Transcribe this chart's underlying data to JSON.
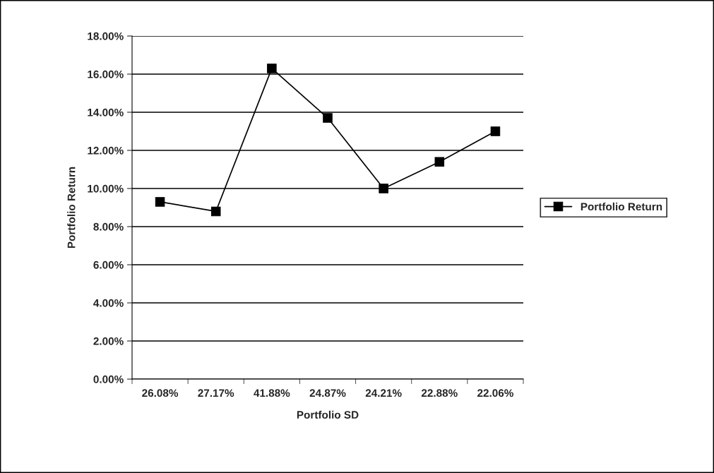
{
  "chart_data": {
    "type": "line",
    "xlabel": "Portfolio SD",
    "ylabel": "Portfolio Return",
    "categories": [
      "26.08%",
      "27.17%",
      "41.88%",
      "24.87%",
      "24.21%",
      "22.88%",
      "22.06%"
    ],
    "series": [
      {
        "name": "Portfolio Return",
        "color": "#000000",
        "values": [
          9.3,
          8.8,
          16.3,
          13.7,
          10.0,
          11.4,
          13.0
        ]
      }
    ],
    "ylim": [
      0,
      18
    ],
    "yticks": [
      {
        "value": 0,
        "label": "0.00%"
      },
      {
        "value": 2,
        "label": "2.00%"
      },
      {
        "value": 4,
        "label": "4.00%"
      },
      {
        "value": 6,
        "label": "6.00%"
      },
      {
        "value": 8,
        "label": "8.00%"
      },
      {
        "value": 10,
        "label": "10.00%"
      },
      {
        "value": 12,
        "label": "12.00%"
      },
      {
        "value": 14,
        "label": "14.00%"
      },
      {
        "value": 16,
        "label": "16.00%"
      },
      {
        "value": 18,
        "label": "18.00%"
      }
    ],
    "grid": "y",
    "legend": "right",
    "marker": "square",
    "line_style": "solid"
  }
}
